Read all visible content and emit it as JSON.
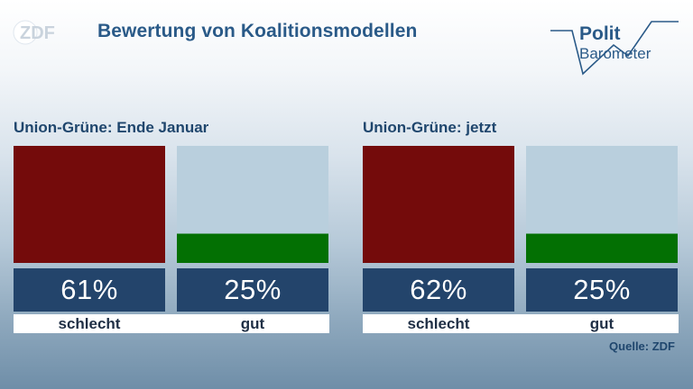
{
  "header": {
    "brand": "ZDF",
    "title": "Bewertung von Koalitionsmodellen",
    "polit_logo_line1": "Polit",
    "polit_logo_line2": "Barometer"
  },
  "colors": {
    "schlecht": "#740b0b",
    "gut": "#037003",
    "bar_background": "#b9cfdd",
    "value_box": "#23446b",
    "text_dark": "#1f466d"
  },
  "chart_data": [
    {
      "type": "bar",
      "title": "Union-Grüne: Ende Januar",
      "categories": [
        "schlecht",
        "gut"
      ],
      "values": [
        61,
        25
      ],
      "value_labels": [
        "61%",
        "25%"
      ],
      "unit": "%"
    },
    {
      "type": "bar",
      "title": "Union-Grüne: jetzt",
      "categories": [
        "schlecht",
        "gut"
      ],
      "values": [
        62,
        25
      ],
      "value_labels": [
        "62%",
        "25%"
      ],
      "unit": "%"
    }
  ],
  "source": "Quelle: ZDF"
}
